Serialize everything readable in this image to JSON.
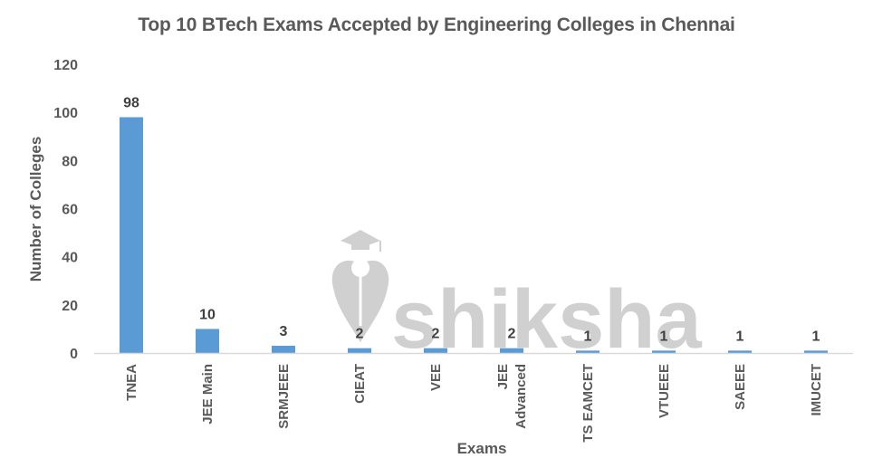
{
  "chart_data": {
    "type": "bar",
    "title": "Top 10 BTech Exams Accepted by Engineering Colleges in Chennai",
    "xlabel": "Exams",
    "ylabel": "Number of Colleges",
    "categories": [
      "TNEA",
      "JEE Main",
      "SRMJEEE",
      "CIEAT",
      "VEE",
      "JEE Advanced",
      "TS EAMCET",
      "VTUEEE",
      "SAEEE",
      "IMUCET"
    ],
    "category_lines": [
      [
        "TNEA"
      ],
      [
        "JEE Main"
      ],
      [
        "SRMJEEE"
      ],
      [
        "CIEAT"
      ],
      [
        "VEE"
      ],
      [
        "JEE",
        "Advanced"
      ],
      [
        "TS EAMCET"
      ],
      [
        "VTUEEE"
      ],
      [
        "SAEEE"
      ],
      [
        "IMUCET"
      ]
    ],
    "values": [
      98,
      10,
      3,
      2,
      2,
      2,
      1,
      1,
      1,
      1
    ],
    "data_labels": [
      "98",
      "10",
      "3",
      "2",
      "2",
      "2",
      "1",
      "1",
      "1",
      "1"
    ],
    "ylim": [
      0,
      120
    ],
    "yticks": [
      0,
      20,
      40,
      60,
      80,
      100,
      120
    ],
    "grid": false,
    "legend": null,
    "bar_color": "#5b9bd5",
    "axis_color": "#d9d9d9"
  },
  "watermark": {
    "text": "shiksha"
  }
}
